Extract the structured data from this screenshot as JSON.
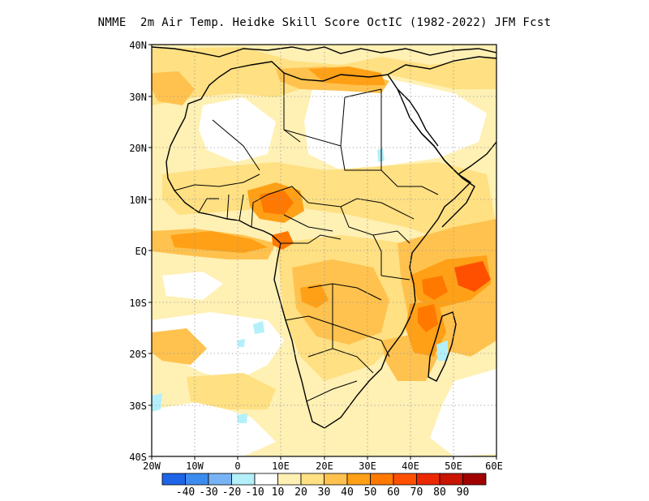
{
  "title": "NMME  2m Air Temp. Heidke Skill Score OctIC (1982-2022) JFM Fcst",
  "map": {
    "lon_range": [
      -20,
      60
    ],
    "lat_range": [
      -40,
      40
    ],
    "lat_labels": [
      "40N",
      "30N",
      "20N",
      "10N",
      "EQ",
      "10S",
      "20S",
      "30S",
      "40S"
    ],
    "lon_labels": [
      "20W",
      "10W",
      "0",
      "10E",
      "20E",
      "30E",
      "40E",
      "50E",
      "60E"
    ],
    "gridlines": "dotted"
  },
  "colorbar": {
    "colors": [
      "#1e64e6",
      "#3c8cf0",
      "#78b4f5",
      "#b4f0fa",
      "#ffffff",
      "#fff0b4",
      "#ffe082",
      "#ffc24e",
      "#ffa016",
      "#ff7800",
      "#ff5000",
      "#eb2800",
      "#c81400",
      "#a00000"
    ],
    "labels": [
      "-40",
      "-30",
      "-20",
      "-10",
      "10",
      "20",
      "30",
      "40",
      "50",
      "60",
      "70",
      "80",
      "90"
    ]
  },
  "fill_colors": {
    "light": "#fff0b4",
    "yellow": "#ffe082",
    "gold": "#ffc24e",
    "orange": "#ffa016",
    "dark_orange": "#ff7800",
    "red_orange": "#ff5000",
    "pale_blue": "#b4f0fa"
  }
}
